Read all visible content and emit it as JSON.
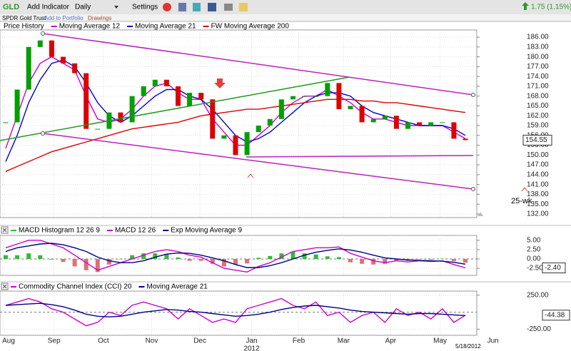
{
  "toolbar": {
    "symbol": "GLD",
    "add_indicator": "Add Indicator",
    "period": "Daily",
    "settings": "Settings",
    "change": "1.75 (1.15%)"
  },
  "subbar": {
    "name": "SPDR Gold Trust",
    "add": "Add to Portfolio",
    "drawings": "Drawings"
  },
  "chart_data": [
    {
      "type": "candlestick",
      "title": "Price History",
      "annotation": "25-wk",
      "year_label": "2012",
      "date_label": "5/18/2012",
      "series": [
        {
          "name": "Price History",
          "color": "#00a000",
          "down_color": "#dd0000",
          "values": [
            160,
            170,
            183,
            185,
            180,
            178,
            175,
            158,
            158,
            163,
            160,
            168,
            171,
            173,
            171,
            165,
            169,
            167,
            155,
            156,
            150,
            157,
            159,
            161,
            167,
            168,
            168,
            168,
            172,
            164,
            165,
            160,
            161,
            162,
            158,
            160,
            159,
            160,
            160,
            155,
            154.55
          ]
        },
        {
          "name": "Moving Average 12",
          "color": "#cc00cc",
          "values": [
            152,
            162,
            172,
            178,
            180,
            178,
            176,
            168,
            161,
            160,
            161,
            164,
            168,
            171,
            172,
            169,
            167,
            167,
            161,
            157,
            153,
            153,
            156,
            159,
            163,
            166,
            168,
            168,
            170,
            168,
            166,
            163,
            161,
            161,
            160,
            159,
            159,
            159,
            159,
            157,
            155
          ]
        },
        {
          "name": "Moving Average 21",
          "color": "#0000cc",
          "values": [
            148,
            156,
            166,
            173,
            178,
            179,
            177,
            172,
            166,
            162,
            160,
            162,
            165,
            168,
            170,
            170,
            168,
            167,
            164,
            160,
            156,
            154,
            155,
            157,
            160,
            163,
            166,
            168,
            169,
            169,
            168,
            165,
            163,
            162,
            161,
            160,
            159,
            159,
            159,
            158,
            156
          ]
        },
        {
          "name": "FW Moving Average 200",
          "color": "#dd0000",
          "values": [
            145,
            146.5,
            148,
            149.5,
            151,
            152,
            153,
            154,
            155,
            156,
            157,
            158,
            158.5,
            159,
            159.5,
            160,
            161,
            162,
            162.5,
            163,
            163.5,
            164,
            164,
            164.5,
            165,
            165.5,
            166,
            166.5,
            167,
            167,
            167,
            166.5,
            166.5,
            166,
            166,
            165.5,
            165,
            164.5,
            164,
            163.5,
            163
          ]
        }
      ],
      "ylim": [
        130.9,
        188.2
      ],
      "yticks": [
        {
          "value": 186,
          "label": "186.00"
        },
        {
          "value": 183,
          "label": "183.00"
        },
        {
          "value": 180,
          "label": "180.00"
        },
        {
          "value": 177,
          "label": "177.00"
        },
        {
          "value": 174,
          "label": "174.00"
        },
        {
          "value": 171,
          "label": "171.00"
        },
        {
          "value": 168,
          "label": "168.00"
        },
        {
          "value": 165,
          "label": "165.00"
        },
        {
          "value": 162,
          "label": "162.00"
        },
        {
          "value": 159,
          "label": "159.00"
        },
        {
          "value": 156,
          "label": "156.00"
        },
        {
          "value": 153,
          "label": "153.00"
        },
        {
          "value": 150,
          "label": "150.00"
        },
        {
          "value": 147,
          "label": "147.00"
        },
        {
          "value": 144,
          "label": "144.00"
        },
        {
          "value": 141,
          "label": "141.00"
        },
        {
          "value": 138,
          "label": "138.00"
        },
        {
          "value": 135,
          "label": "135.00"
        },
        {
          "value": 132,
          "label": "132.00"
        }
      ],
      "xticks": [
        {
          "value": -0.2,
          "label": "Aug"
        },
        {
          "value": 4.2,
          "label": "Sep"
        },
        {
          "value": 8.5,
          "label": "Oct"
        },
        {
          "value": 12.7,
          "label": "Nov"
        },
        {
          "value": 16.9,
          "label": "Dec"
        },
        {
          "value": 21.4,
          "label": "Jan"
        },
        {
          "value": 25.5,
          "label": "Feb"
        },
        {
          "value": 29.4,
          "label": "Mar"
        },
        {
          "value": 33.5,
          "label": "Apr"
        },
        {
          "value": 37.8,
          "label": "May"
        },
        {
          "value": 42.4,
          "label": "Jun"
        }
      ]
    },
    {
      "type": "macd",
      "current_label": "-2.40",
      "current_value": -2.4,
      "series": [
        {
          "name": "MACD Histogram 12 26 9",
          "color": "#33bb33",
          "down_color": "#e07070",
          "values": [
            1,
            1,
            1.5,
            1,
            -0.2,
            -0.8,
            -2,
            -3,
            -3.5,
            -1.5,
            0,
            1,
            1.5,
            1.5,
            1.2,
            0.4,
            -0.5,
            -0.5,
            -1.3,
            -2,
            -1.5,
            -1.2,
            0.3,
            0.8,
            1.5,
            2,
            1.5,
            1.2,
            0.7,
            0.5,
            -0.9,
            -1.3,
            -1.5,
            -1.3,
            -0.5,
            -0.5,
            -0.1,
            -0.2,
            0.1,
            -0.6,
            -1
          ]
        },
        {
          "name": "MACD 12 26",
          "color": "#cc00cc",
          "values": [
            3,
            4,
            5,
            5,
            4,
            3,
            1,
            -1,
            -3,
            -2,
            -1,
            0,
            1,
            2,
            2.5,
            2,
            1,
            0.5,
            -1,
            -2.5,
            -3,
            -3.5,
            -2,
            -1,
            0.5,
            2,
            2.5,
            3,
            3,
            3.2,
            1.5,
            0.5,
            -0.5,
            -1,
            -0.5,
            -0.8,
            -0.5,
            -0.7,
            -0.5,
            -1.5,
            -2.4
          ]
        },
        {
          "name": "Exp Moving Average 9",
          "color": "#000080",
          "values": [
            2,
            3,
            3.5,
            4,
            4.2,
            3.8,
            3,
            2,
            0.5,
            -0.5,
            -1,
            -1,
            -0.5,
            0.5,
            1.3,
            1.6,
            1.5,
            1,
            0.3,
            -0.5,
            -1.5,
            -2.3,
            -2.3,
            -1.8,
            -1,
            0,
            1,
            1.8,
            2.3,
            2.7,
            2.4,
            1.8,
            1,
            0.3,
            0,
            -0.3,
            -0.4,
            -0.5,
            -0.6,
            -0.9,
            -1.4
          ]
        }
      ],
      "ylim": [
        -4.4,
        6.3
      ],
      "yticks": [
        {
          "value": 5,
          "label": "5.00"
        },
        {
          "value": 2.5,
          "label": "2.50"
        },
        {
          "value": 0,
          "label": "0.00"
        },
        {
          "value": -2.5,
          "label": "-2.50"
        }
      ]
    },
    {
      "type": "cci",
      "series": [
        {
          "name": "Commodity Channel Index (CCI) 20",
          "color": "#cc00cc",
          "values": [
            100,
            150,
            200,
            150,
            50,
            0,
            -100,
            -200,
            -150,
            0,
            -50,
            100,
            150,
            100,
            50,
            -100,
            50,
            -50,
            -150,
            -100,
            -150,
            50,
            100,
            150,
            200,
            100,
            50,
            150,
            -50,
            0,
            -150,
            -50,
            0,
            -150,
            50,
            -50,
            0,
            -100,
            50,
            -150,
            -44.38
          ]
        },
        {
          "name": "Moving Average 21",
          "color": "#000080",
          "values": [
            100,
            110,
            120,
            130,
            110,
            80,
            30,
            -30,
            -60,
            -70,
            -60,
            -30,
            0,
            20,
            40,
            30,
            10,
            0,
            -20,
            -40,
            -60,
            -50,
            -30,
            0,
            40,
            70,
            90,
            100,
            80,
            60,
            30,
            10,
            0,
            -10,
            -20,
            -30,
            -20,
            -20,
            -30,
            -40,
            -50
          ]
        }
      ],
      "ylim": [
        -340,
        310
      ],
      "yticks": [
        {
          "value": 250,
          "label": "250.00"
        },
        {
          "value": -250,
          "label": "-250.00"
        }
      ]
    }
  ]
}
